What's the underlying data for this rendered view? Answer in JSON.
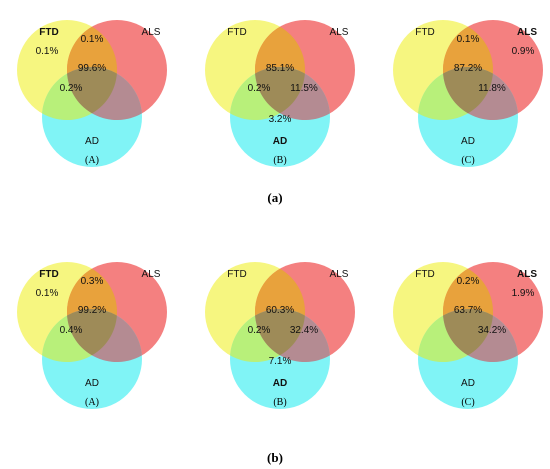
{
  "figure": {
    "rows": [
      {
        "caption": "(a)",
        "panels": [
          {
            "label": "(A)",
            "sets": {
              "ftd": "FTD",
              "als": "ALS",
              "ad": "AD"
            },
            "bold": [
              "ftd"
            ],
            "regions": {
              "ftd_only": "0.1%",
              "ftd_als": "0.1%",
              "center": "99.6%",
              "ftd_ad": "0.2%"
            }
          },
          {
            "label": "(B)",
            "sets": {
              "ftd": "FTD",
              "als": "ALS",
              "ad": "AD"
            },
            "bold": [
              "ad"
            ],
            "regions": {
              "center": "85.1%",
              "ftd_ad": "0.2%",
              "als_ad": "11.5%",
              "ad_only": "3.2%"
            }
          },
          {
            "label": "(C)",
            "sets": {
              "ftd": "FTD",
              "als": "ALS",
              "ad": "AD"
            },
            "bold": [
              "als"
            ],
            "regions": {
              "ftd_als": "0.1%",
              "als_only": "0.9%",
              "center": "87.2%",
              "als_ad": "11.8%"
            }
          }
        ]
      },
      {
        "caption": "(b)",
        "panels": [
          {
            "label": "(A)",
            "sets": {
              "ftd": "FTD",
              "als": "ALS",
              "ad": "AD"
            },
            "bold": [
              "ftd"
            ],
            "regions": {
              "ftd_only": "0.1%",
              "ftd_als": "0.3%",
              "center": "99.2%",
              "ftd_ad": "0.4%"
            }
          },
          {
            "label": "(B)",
            "sets": {
              "ftd": "FTD",
              "als": "ALS",
              "ad": "AD"
            },
            "bold": [
              "ad"
            ],
            "regions": {
              "center": "60.3%",
              "ftd_ad": "0.2%",
              "als_ad": "32.4%",
              "ad_only": "7.1%"
            }
          },
          {
            "label": "(C)",
            "sets": {
              "ftd": "FTD",
              "als": "ALS",
              "ad": "AD"
            },
            "bold": [
              "als"
            ],
            "regions": {
              "ftd_als": "0.2%",
              "als_only": "1.9%",
              "center": "63.7%",
              "als_ad": "34.2%"
            }
          }
        ]
      }
    ],
    "colors": {
      "ftd": "#f5f56a",
      "als": "#f26a6a",
      "ad": "#6af2f5",
      "ftd_als": "#e8a23c",
      "ftd_ad": "#b8f07a",
      "als_ad": "#b48b92",
      "center": "#9e8b58"
    }
  }
}
